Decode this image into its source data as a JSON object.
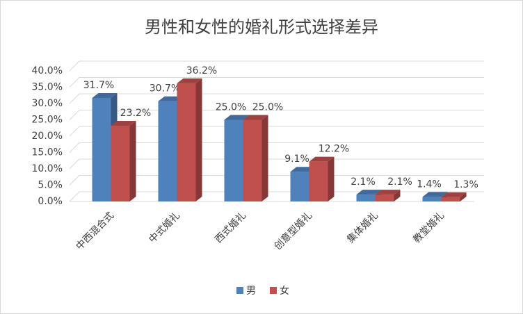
{
  "chart_data": {
    "type": "bar3d",
    "title": "男性和女性的婚礼形式选择差异",
    "categories": [
      "中西混合式",
      "中式婚礼",
      "西式婚礼",
      "创意型婚礼",
      "集体婚礼",
      "教堂婚礼"
    ],
    "series": [
      {
        "name": "男",
        "color": "#4f81bd",
        "values": [
          31.7,
          30.7,
          25.0,
          9.1,
          2.1,
          1.4
        ],
        "value_labels": [
          "31.7%",
          "30.7%",
          "25.0%",
          "9.1%",
          "2.1%",
          "1.4%"
        ]
      },
      {
        "name": "女",
        "color": "#c0504d",
        "values": [
          23.2,
          36.2,
          25.0,
          12.2,
          2.1,
          1.3
        ],
        "value_labels": [
          "23.2%",
          "36.2%",
          "25.0%",
          "12.2%",
          "2.1%",
          "1.3%"
        ]
      }
    ],
    "ylim": [
      0,
      40
    ],
    "yticks": [
      {
        "value": 0,
        "label": "0.0%"
      },
      {
        "value": 5,
        "label": "5.0%"
      },
      {
        "value": 10,
        "label": "10.0%"
      },
      {
        "value": 15,
        "label": "15.0%"
      },
      {
        "value": 20,
        "label": "20.0%"
      },
      {
        "value": 25,
        "label": "25.0%"
      },
      {
        "value": 30,
        "label": "30.0%"
      },
      {
        "value": 35,
        "label": "35.0%"
      },
      {
        "value": 40,
        "label": "40.0%"
      }
    ],
    "grid": true,
    "legend": "bottom"
  }
}
